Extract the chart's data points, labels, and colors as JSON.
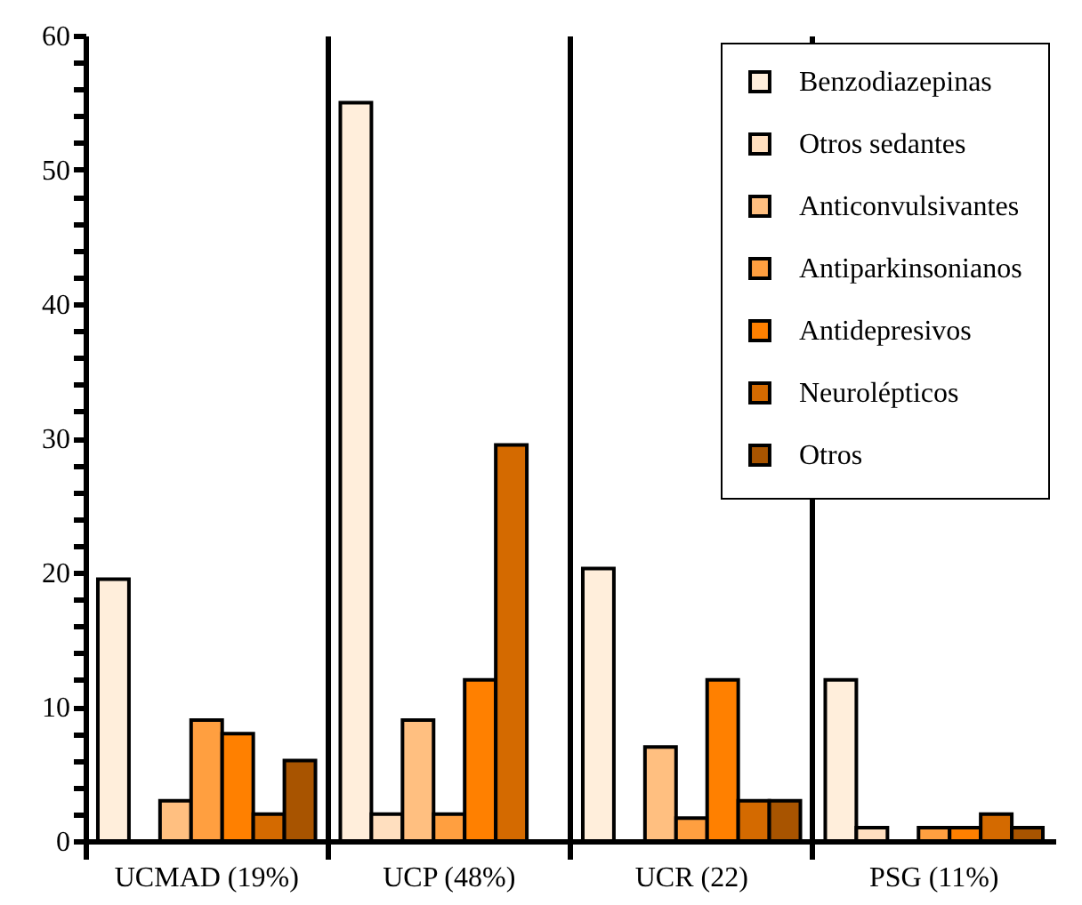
{
  "chart_data": {
    "type": "bar",
    "categories": [
      "UCMAD (19%)",
      "UCP (48%)",
      "UCR (22)",
      "PSG (11%)"
    ],
    "series": [
      {
        "name": "Benzodiazepinas",
        "color": "#ffeedb",
        "values": [
          19.5,
          55,
          20.3,
          12
        ]
      },
      {
        "name": "Otros sedantes",
        "color": "#ffdfbf",
        "values": [
          null,
          2,
          null,
          1
        ]
      },
      {
        "name": "Anticonvulsivantes",
        "color": "#ffbf80",
        "values": [
          3,
          9,
          7,
          null
        ]
      },
      {
        "name": "Antiparkinsonianos",
        "color": "#ff9f40",
        "values": [
          9,
          2,
          1.7,
          1
        ]
      },
      {
        "name": "Antidepresivos",
        "color": "#ff8000",
        "values": [
          8,
          12,
          12,
          1
        ]
      },
      {
        "name": "Neurolépticos",
        "color": "#d46a00",
        "values": [
          2,
          29.5,
          3,
          2
        ]
      },
      {
        "name": "Otros",
        "color": "#a85400",
        "values": [
          6,
          null,
          3,
          1
        ]
      }
    ],
    "ylim": [
      0,
      60
    ],
    "yticks": [
      0,
      {
        "value": 2,
        "label": null
      },
      {
        "value": 4,
        "label": null
      },
      {
        "value": 6,
        "label": null
      },
      {
        "value": 8,
        "label": null
      },
      10,
      {
        "value": 12,
        "label": null
      },
      {
        "value": 14,
        "label": null
      },
      {
        "value": 16,
        "label": null
      },
      {
        "value": 18,
        "label": null
      },
      20,
      {
        "value": 22,
        "label": null
      },
      {
        "value": 24,
        "label": null
      },
      {
        "value": 26,
        "label": null
      },
      {
        "value": 28,
        "label": null
      },
      30,
      {
        "value": 32,
        "label": null
      },
      {
        "value": 34,
        "label": null
      },
      {
        "value": 36,
        "label": null
      },
      {
        "value": 38,
        "label": null
      },
      40,
      {
        "value": 42,
        "label": null
      },
      {
        "value": 44,
        "label": null
      },
      {
        "value": 46,
        "label": null
      },
      {
        "value": 48,
        "label": null
      },
      50,
      {
        "value": 52,
        "label": null
      },
      {
        "value": 54,
        "label": null
      },
      {
        "value": 56,
        "label": null
      },
      {
        "value": 58,
        "label": null
      },
      60
    ],
    "grid": "x",
    "legend": "top right"
  }
}
